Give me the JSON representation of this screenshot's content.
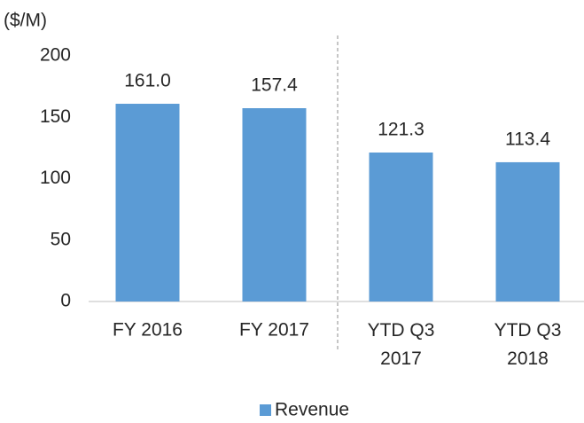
{
  "chart_data": {
    "type": "bar",
    "y_axis_label": "($/M)",
    "categories": [
      "FY 2016",
      "FY 2017",
      "YTD Q3 2017",
      "YTD Q3 2018"
    ],
    "series": [
      {
        "name": "Revenue",
        "color": "#5b9bd5",
        "values": [
          161.0,
          157.4,
          121.3,
          113.4
        ],
        "value_labels": [
          "161.0",
          "157.4",
          "121.3",
          "113.4"
        ]
      }
    ],
    "ylim": [
      0,
      200
    ],
    "yticks": [
      0,
      50,
      100,
      150,
      200
    ],
    "grid": false,
    "legend": "bottom"
  }
}
